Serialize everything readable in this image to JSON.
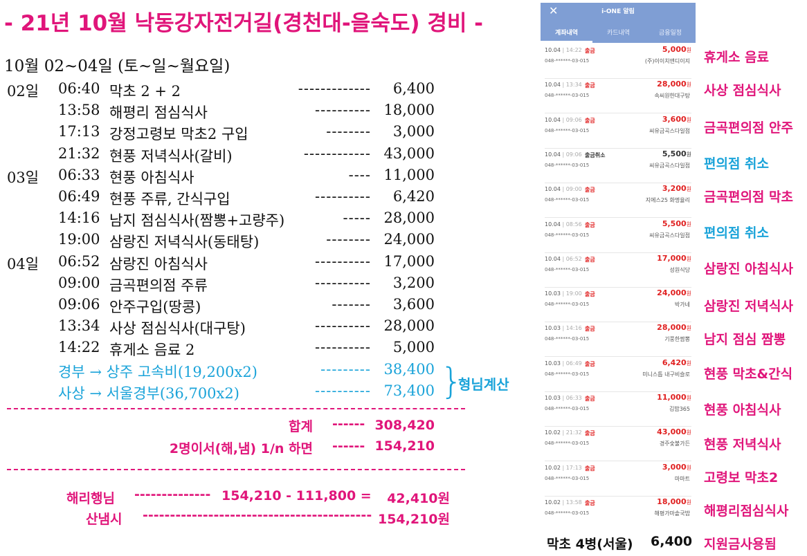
{
  "title": "- 21년 10월 낙동강자전거길(경천대-을숙도) 경비 -",
  "date_range": "10월 02~04일 (토~일~월요일)",
  "expenses": [
    {
      "day": "02일",
      "time": "06:40",
      "desc": "막초 2 + 2",
      "dash": "-------------",
      "amount": "6,400"
    },
    {
      "day": "",
      "time": "13:58",
      "desc": "해평리 점심식사",
      "dash": "----------",
      "amount": "18,000"
    },
    {
      "day": "",
      "time": "17:13",
      "desc": "강정고령보 막초2 구입",
      "dash": "--------",
      "amount": "3,000"
    },
    {
      "day": "",
      "time": "21:32",
      "desc": "현풍 저녁식사(갈비)",
      "dash": "------------",
      "amount": "43,000"
    },
    {
      "day": "03일",
      "time": "06:33",
      "desc": "현풍 아침식사",
      "dash": "----",
      "amount": "11,000"
    },
    {
      "day": "",
      "time": "06:49",
      "desc": "현풍 주류, 간식구입",
      "dash": "----------",
      "amount": "6,420"
    },
    {
      "day": "",
      "time": "14:16",
      "desc": "남지 점심식사(짬뽕+고량주)",
      "dash": "-----",
      "amount": "28,000"
    },
    {
      "day": "",
      "time": "19:00",
      "desc": "삼랑진 저녁식사(동태탕)",
      "dash": "--------",
      "amount": "24,000"
    },
    {
      "day": "04일",
      "time": "06:52",
      "desc": "삼랑진 아침식사",
      "dash": "----------",
      "amount": "17,000"
    },
    {
      "day": "",
      "time": "09:00",
      "desc": "금곡편의점 주류",
      "dash": "----------",
      "amount": "3,200"
    },
    {
      "day": "",
      "time": "09:06",
      "desc": "안주구입(땅콩)",
      "dash": "-------",
      "amount": "3,600"
    },
    {
      "day": "",
      "time": "13:34",
      "desc": "사상 점심식사(대구탕)",
      "dash": "----------",
      "amount": "28,000"
    },
    {
      "day": "",
      "time": "14:22",
      "desc": "휴게소 음료 2",
      "dash": "----------",
      "amount": "5,000"
    }
  ],
  "tolls": [
    {
      "desc": "경부 → 상주 고속비(19,200x2)",
      "dash": "---------",
      "amount": "38,400"
    },
    {
      "desc": "사상 → 서울경부(36,700x2)",
      "dash": "----------",
      "amount": "73,400"
    }
  ],
  "brace_note": "형님계산",
  "totals": {
    "total_label": "합계",
    "total_dash": "------",
    "total_value": "308,420",
    "split_label": "2명이서(해,냄) 1/n 하면",
    "split_dash": "------",
    "split_value": "154,210"
  },
  "settlement": {
    "name1": "해리행님",
    "dash1": "--------------",
    "calc1": "154,210 -  111,800 =",
    "result1": "42,410원",
    "name2": "산냄시",
    "dash2": "------------------------------------------",
    "result2": "154,210원"
  },
  "phone": {
    "title": "i-ONE 알림",
    "tabs": [
      "계좌내역",
      "카드내역",
      "금융일정"
    ],
    "active_tab": 0,
    "transactions": [
      {
        "date": "10.04",
        "time": "14:22",
        "kind": "출금",
        "amount": "5,000",
        "currency": "원",
        "account": "048-******-03-015",
        "merchant": "(주)이이치앤디이지"
      },
      {
        "date": "10.04",
        "time": "13:34",
        "kind": "출금",
        "amount": "28,000",
        "currency": "원",
        "account": "048-******-03-015",
        "merchant": "속씨원한대구탕"
      },
      {
        "date": "10.04",
        "time": "09:06",
        "kind": "출금",
        "amount": "3,600",
        "currency": "원",
        "account": "048-******-03-015",
        "merchant": "씨유금곡스다일점"
      },
      {
        "date": "10.04",
        "time": "09:06",
        "kind": "출금취소",
        "amount": "5,500",
        "currency": "원",
        "account": "048-******-03-015",
        "merchant": "씨유금곡스다일점"
      },
      {
        "date": "10.04",
        "time": "09:00",
        "kind": "출금",
        "amount": "3,200",
        "currency": "원",
        "account": "048-******-03-015",
        "merchant": "지에스25 화명율리"
      },
      {
        "date": "10.04",
        "time": "08:56",
        "kind": "출금",
        "amount": "5,500",
        "currency": "원",
        "account": "048-******-03-015",
        "merchant": "씨유금곡스다일점"
      },
      {
        "date": "10.04",
        "time": "06:52",
        "kind": "출금",
        "amount": "17,000",
        "currency": "원",
        "account": "048-******-03-015",
        "merchant": "성원식당"
      },
      {
        "date": "10.03",
        "time": "19:00",
        "kind": "출금",
        "amount": "24,000",
        "currency": "원",
        "account": "048-******-03-015",
        "merchant": "박가네"
      },
      {
        "date": "10.03",
        "time": "14:16",
        "kind": "출금",
        "amount": "28,000",
        "currency": "원",
        "account": "048-******-03-015",
        "merchant": "기풍한짬뽕"
      },
      {
        "date": "10.03",
        "time": "06:49",
        "kind": "출금",
        "amount": "6,420",
        "currency": "원",
        "account": "048-******-03-015",
        "merchant": "미니스톱 내구비슬로"
      },
      {
        "date": "10.03",
        "time": "06:33",
        "kind": "출금",
        "amount": "11,000",
        "currency": "원",
        "account": "048-******-03-015",
        "merchant": "김밥365"
      },
      {
        "date": "10.02",
        "time": "21:32",
        "kind": "출금",
        "amount": "43,000",
        "currency": "원",
        "account": "048-******-03-015",
        "merchant": "경주숯불가든"
      },
      {
        "date": "10.02",
        "time": "17:13",
        "kind": "출금",
        "amount": "3,000",
        "currency": "원",
        "account": "048-******-03-015",
        "merchant": "마마트"
      },
      {
        "date": "10.02",
        "time": "13:58",
        "kind": "출금",
        "amount": "18,000",
        "currency": "원",
        "account": "048-******-03-015",
        "merchant": "해평가마솥국밥"
      }
    ]
  },
  "notes": [
    {
      "text": "휴게소 음료",
      "color": "#e0157a"
    },
    {
      "text": "사상 점심식사",
      "color": "#e0157a"
    },
    {
      "text": "금곡편의점 안주",
      "color": "#e0157a"
    },
    {
      "text": "편의점 취소",
      "color": "#1aa3d9"
    },
    {
      "text": "금곡편의점 막초",
      "color": "#e0157a"
    },
    {
      "text": "편의점 취소",
      "color": "#1aa3d9"
    },
    {
      "text": "삼랑진 아침식사",
      "color": "#e0157a"
    },
    {
      "text": "삼랑진 저녁식사",
      "color": "#e0157a"
    },
    {
      "text": "남지 점심 짬뽕",
      "color": "#e0157a"
    },
    {
      "text": "현풍 막초&간식",
      "color": "#e0157a"
    },
    {
      "text": "현풍 아침식사",
      "color": "#e0157a"
    },
    {
      "text": "현풍 저녁식사",
      "color": "#e0157a"
    },
    {
      "text": "고령보 막초2",
      "color": "#e0157a"
    },
    {
      "text": "해평리점심식사",
      "color": "#e0157a"
    }
  ],
  "footer": {
    "label": "막초 4병(서울)",
    "amount": "6,400",
    "note": "지원금사용됨"
  },
  "colors": {
    "accent_pink": "#e0157a",
    "accent_blue": "#1aa3d9",
    "phone_header": "#7f9ed4",
    "withdraw_red": "#e02020"
  }
}
